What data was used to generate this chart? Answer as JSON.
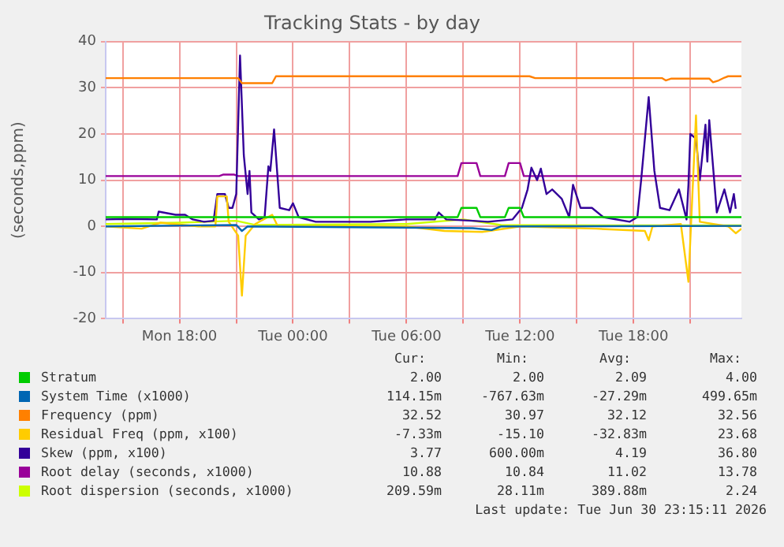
{
  "chart_data": {
    "type": "line",
    "title": "Tracking Stats - by day",
    "ylabel": "(seconds,ppm)",
    "xlim": [
      "2026-06-29T14:06",
      "2026-06-30T23:42"
    ],
    "xticks": [
      {
        "value": "2026-06-29T15:00",
        "label": null
      },
      {
        "value": "2026-06-29T18:00",
        "label": "Mon 18:00"
      },
      {
        "value": "2026-06-29T21:00",
        "label": null
      },
      {
        "value": "2026-06-30T00:00",
        "label": "Tue 00:00"
      },
      {
        "value": "2026-06-30T03:00",
        "label": null
      },
      {
        "value": "2026-06-30T06:00",
        "label": "Tue 06:00"
      },
      {
        "value": "2026-06-30T09:00",
        "label": null
      },
      {
        "value": "2026-06-30T12:00",
        "label": "Tue 12:00"
      },
      {
        "value": "2026-06-30T15:00",
        "label": null
      },
      {
        "value": "2026-06-30T18:00",
        "label": "Tue 18:00"
      },
      {
        "value": "2026-06-30T21:00",
        "label": null
      }
    ],
    "ylim": [
      -20,
      40
    ],
    "yticks": [
      -20,
      -10,
      0,
      10,
      20,
      30,
      40
    ],
    "grid": true,
    "legend": "bottom",
    "marker": "none",
    "line_style": "solid",
    "series": [
      {
        "name": "Stratum",
        "color": "#00cc00",
        "x": [
          "2026-06-29T14:06",
          "2026-06-30T08:42",
          "2026-06-30T08:54",
          "2026-06-30T09:42",
          "2026-06-30T09:54",
          "2026-06-30T11:12",
          "2026-06-30T11:24",
          "2026-06-30T12:00",
          "2026-06-30T12:12",
          "2026-06-30T23:42"
        ],
        "values": [
          2,
          2,
          4,
          4,
          2,
          2,
          4,
          4,
          2,
          2
        ]
      },
      {
        "name": "System Time (x1000)",
        "color": "#0066b3",
        "x": [
          "2026-06-29T14:06",
          "2026-06-29T21:00",
          "2026-06-29T21:18",
          "2026-06-29T21:36",
          "2026-06-30T09:30",
          "2026-06-30T10:30",
          "2026-06-30T11:00",
          "2026-06-30T23:42"
        ],
        "values": [
          0,
          0.3,
          -1,
          0,
          -0.4,
          -0.8,
          0,
          0.1
        ]
      },
      {
        "name": "Frequency (ppm)",
        "color": "#ff8000",
        "x": [
          "2026-06-29T14:06",
          "2026-06-29T21:06",
          "2026-06-29T21:18",
          "2026-06-29T22:54",
          "2026-06-29T23:06",
          "2026-06-30T12:30",
          "2026-06-30T12:48",
          "2026-06-30T19:30",
          "2026-06-30T19:42",
          "2026-06-30T20:00",
          "2026-06-30T22:00",
          "2026-06-30T22:12",
          "2026-06-30T22:30",
          "2026-06-30T22:48",
          "2026-06-30T23:00",
          "2026-06-30T23:42"
        ],
        "values": [
          32.1,
          32.1,
          31.0,
          31.0,
          32.5,
          32.5,
          32.1,
          32.1,
          31.6,
          32.0,
          32.0,
          31.2,
          31.6,
          32.2,
          32.5,
          32.5
        ]
      },
      {
        "name": "Residual Freq (ppm, x100)",
        "color": "#ffcc00",
        "x": [
          "2026-06-29T14:06",
          "2026-06-29T16:00",
          "2026-06-29T17:00",
          "2026-06-29T19:00",
          "2026-06-29T19:54",
          "2026-06-29T20:00",
          "2026-06-29T20:30",
          "2026-06-29T20:36",
          "2026-06-29T21:06",
          "2026-06-29T21:18",
          "2026-06-29T21:30",
          "2026-06-29T22:00",
          "2026-06-29T22:54",
          "2026-06-29T23:12",
          "2026-06-30T06:00",
          "2026-06-30T08:00",
          "2026-06-30T10:00",
          "2026-06-30T12:00",
          "2026-06-30T16:00",
          "2026-06-30T18:36",
          "2026-06-30T18:48",
          "2026-06-30T19:00",
          "2026-06-30T20:30",
          "2026-06-30T20:54",
          "2026-06-30T21:18",
          "2026-06-30T21:30",
          "2026-06-30T23:00",
          "2026-06-30T23:24",
          "2026-06-30T23:42"
        ],
        "values": [
          0,
          -0.5,
          0.8,
          0,
          0,
          6.5,
          6.5,
          1,
          -2,
          -15,
          -2,
          0.5,
          2.5,
          0,
          0,
          -1,
          -1.2,
          0,
          -0.5,
          -1,
          -3,
          0,
          0.5,
          -12,
          24,
          1,
          0,
          -1.5,
          -0.5
        ]
      },
      {
        "name": "Skew (ppm, x100)",
        "color": "#330099",
        "x": [
          "2026-06-29T14:06",
          "2026-06-29T15:12",
          "2026-06-29T16:48",
          "2026-06-29T16:54",
          "2026-06-29T17:48",
          "2026-06-29T18:18",
          "2026-06-29T18:42",
          "2026-06-29T19:18",
          "2026-06-29T19:48",
          "2026-06-29T20:00",
          "2026-06-29T20:24",
          "2026-06-29T20:36",
          "2026-06-29T20:48",
          "2026-06-29T21:00",
          "2026-06-29T21:12",
          "2026-06-29T21:24",
          "2026-06-29T21:36",
          "2026-06-29T21:42",
          "2026-06-29T21:48",
          "2026-06-29T22:12",
          "2026-06-29T22:30",
          "2026-06-29T22:42",
          "2026-06-29T22:48",
          "2026-06-29T23:00",
          "2026-06-29T23:18",
          "2026-06-29T23:48",
          "2026-06-30T00:00",
          "2026-06-30T00:18",
          "2026-06-30T01:12",
          "2026-06-30T04:06",
          "2026-06-30T06:00",
          "2026-06-30T07:30",
          "2026-06-30T07:42",
          "2026-06-30T08:06",
          "2026-06-30T09:30",
          "2026-06-30T10:18",
          "2026-06-30T11:36",
          "2026-06-30T12:06",
          "2026-06-30T12:24",
          "2026-06-30T12:36",
          "2026-06-30T12:54",
          "2026-06-30T13:06",
          "2026-06-30T13:24",
          "2026-06-30T13:42",
          "2026-06-30T14:12",
          "2026-06-30T14:36",
          "2026-06-30T14:48",
          "2026-06-30T15:12",
          "2026-06-30T15:48",
          "2026-06-30T16:24",
          "2026-06-30T17:48",
          "2026-06-30T18:12",
          "2026-06-30T18:24",
          "2026-06-30T18:48",
          "2026-06-30T19:06",
          "2026-06-30T19:24",
          "2026-06-30T19:54",
          "2026-06-30T20:24",
          "2026-06-30T20:48",
          "2026-06-30T20:54",
          "2026-06-30T21:00",
          "2026-06-30T21:18",
          "2026-06-30T21:30",
          "2026-06-30T21:48",
          "2026-06-30T21:54",
          "2026-06-30T22:00",
          "2026-06-30T22:24",
          "2026-06-30T22:48",
          "2026-06-30T23:06",
          "2026-06-30T23:18",
          "2026-06-30T23:24"
        ],
        "values": [
          1.5,
          1.6,
          1.5,
          3.2,
          2.5,
          2.5,
          1.5,
          1,
          1.2,
          7,
          7,
          4,
          4,
          7,
          37,
          15.4,
          7,
          12,
          3,
          1.5,
          2,
          13,
          12,
          21,
          4,
          3.5,
          5,
          2,
          1,
          1,
          1.5,
          1.5,
          3,
          1.5,
          1.2,
          1,
          1.5,
          4,
          8,
          12.7,
          10,
          12.5,
          7,
          8,
          6,
          2,
          9,
          4,
          4,
          2,
          1,
          2,
          10,
          28,
          12,
          4,
          3.5,
          8,
          1.5,
          9,
          20,
          19,
          10,
          22,
          14,
          23,
          3,
          8,
          3,
          7,
          3.8
        ]
      },
      {
        "name": "Root delay (seconds, x1000)",
        "color": "#990099",
        "x": [
          "2026-06-29T14:06",
          "2026-06-29T20:06",
          "2026-06-29T20:18",
          "2026-06-29T20:54",
          "2026-06-29T21:06",
          "2026-06-30T08:42",
          "2026-06-30T08:54",
          "2026-06-30T09:42",
          "2026-06-30T09:54",
          "2026-06-30T11:12",
          "2026-06-30T11:24",
          "2026-06-30T12:00",
          "2026-06-30T12:12",
          "2026-06-30T23:42"
        ],
        "values": [
          10.9,
          10.9,
          11.2,
          11.2,
          10.9,
          10.9,
          13.7,
          13.7,
          10.9,
          10.9,
          13.7,
          13.7,
          10.9,
          10.9
        ]
      },
      {
        "name": "Root dispersion (seconds, x1000)",
        "color": "#ccff00",
        "x": [
          "2026-06-29T14:06",
          "2026-06-29T18:00",
          "2026-06-29T21:00",
          "2026-06-29T22:00",
          "2026-06-30T06:00",
          "2026-06-30T09:00",
          "2026-06-30T11:00",
          "2026-06-30T16:00",
          "2026-06-30T23:42"
        ],
        "values": [
          0.5,
          0.8,
          1.2,
          0.3,
          0.5,
          1.5,
          0.3,
          0.2,
          0.2
        ]
      }
    ],
    "annotations": [
      "Cur:",
      "Min:",
      "Avg:",
      "Max:",
      "2.00",
      "2.00",
      "2.09",
      "4.00",
      "114.15m",
      "-767.63m",
      "-27.29m",
      "499.65m",
      "32.52",
      "30.97",
      "32.12",
      "32.56",
      "-7.33m",
      "-15.10",
      "-32.83m",
      "23.68",
      "3.77",
      "600.00m",
      "4.19",
      "36.80",
      "10.88",
      "10.84",
      "11.02",
      "13.78",
      "209.59m",
      "28.11m",
      "389.88m",
      "2.24",
      "Last update: Tue Jun 30 23:15:11 2026"
    ]
  }
}
